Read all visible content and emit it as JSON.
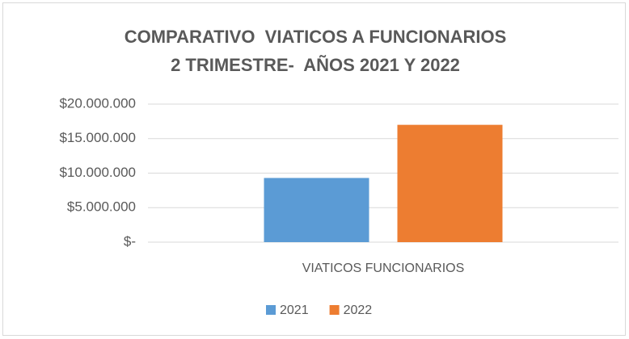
{
  "chart_data": {
    "type": "bar",
    "title": [
      "COMPARATIVO  VIATICOS A FUNCIONARIOS",
      "2 TRIMESTRE-  AÑOS 2021 Y 2022"
    ],
    "categories": [
      "VIATICOS FUNCIONARIOS"
    ],
    "series": [
      {
        "name": "2021",
        "color": "#5b9bd5",
        "values": [
          9300000
        ]
      },
      {
        "name": "2022",
        "color": "#ed7d31",
        "values": [
          17000000
        ]
      }
    ],
    "ylim": [
      0,
      20000000
    ],
    "yticks": [
      {
        "value": 0,
        "label": "$-"
      },
      {
        "value": 5000000,
        "label": "$5.000.000"
      },
      {
        "value": 10000000,
        "label": "$10.000.000"
      },
      {
        "value": 15000000,
        "label": "$15.000.000"
      },
      {
        "value": 20000000,
        "label": "$20.000.000"
      }
    ],
    "grid": true,
    "legend": "bottom"
  }
}
